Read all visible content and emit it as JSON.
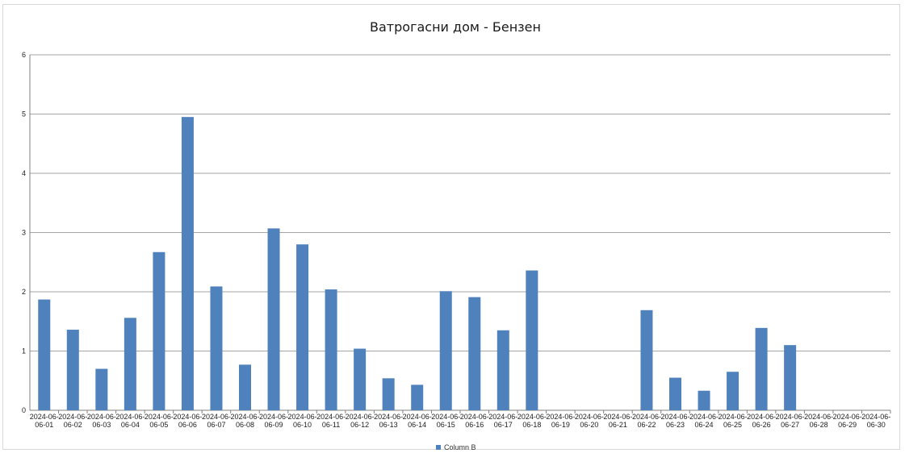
{
  "chart_data": {
    "type": "bar",
    "title": "Ватрогасни дом - Бензен",
    "xlabel": "",
    "ylabel": "",
    "ylim": [
      0,
      6
    ],
    "yticks": [
      "0",
      "1",
      "2",
      "3",
      "4",
      "5",
      "6"
    ],
    "grid": true,
    "legend_position": "bottom",
    "categories": [
      "2024-06-01",
      "2024-06-02",
      "2024-06-03",
      "2024-06-04",
      "2024-06-05",
      "2024-06-06",
      "2024-06-07",
      "2024-06-08",
      "2024-06-09",
      "2024-06-10",
      "2024-06-11",
      "2024-06-12",
      "2024-06-13",
      "2024-06-14",
      "2024-06-15",
      "2024-06-16",
      "2024-06-17",
      "2024-06-18",
      "2024-06-19",
      "2024-06-20",
      "2024-06-21",
      "2024-06-22",
      "2024-06-23",
      "2024-06-24",
      "2024-06-25",
      "2024-06-26",
      "2024-06-27",
      "2024-06-28",
      "2024-06-29",
      "2024-06-30"
    ],
    "series": [
      {
        "name": "Column B",
        "color": "#4f81bd",
        "values": [
          1.87,
          1.36,
          0.7,
          1.56,
          2.67,
          4.95,
          2.09,
          0.77,
          3.07,
          2.8,
          2.04,
          1.04,
          0.54,
          0.43,
          2.01,
          1.91,
          1.35,
          2.36,
          null,
          null,
          null,
          1.69,
          0.55,
          0.33,
          0.65,
          1.39,
          1.1,
          null,
          null,
          null
        ]
      }
    ]
  }
}
